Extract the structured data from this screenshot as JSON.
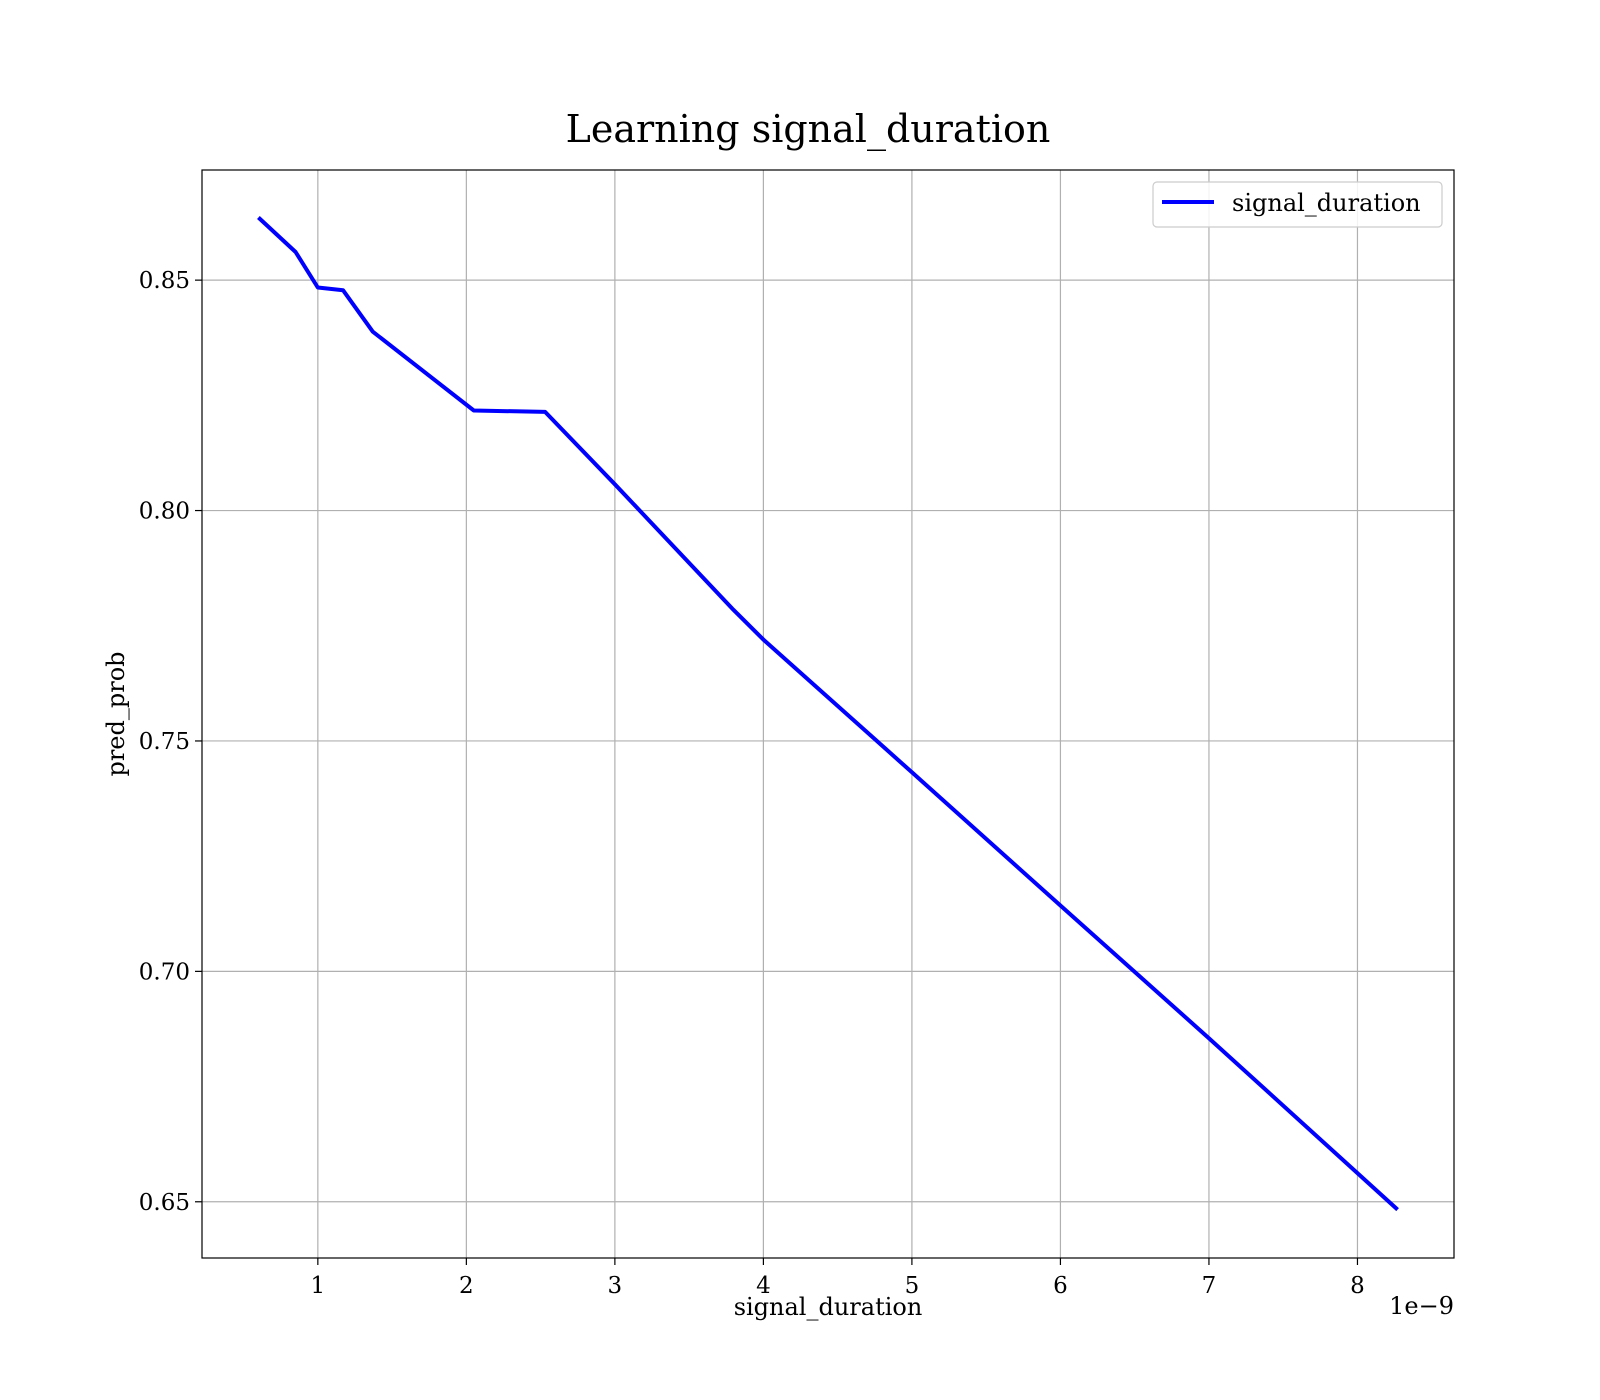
{
  "chart_data": {
    "type": "line",
    "title": "Learning signal_duration",
    "xlabel": "signal_duration",
    "ylabel": "pred_prob",
    "x_offset_label": "1e−9",
    "xlim": [
      0.22,
      8.65
    ],
    "ylim": [
      0.6378,
      0.8739
    ],
    "xticks": [
      1,
      2,
      3,
      4,
      5,
      6,
      7,
      8
    ],
    "xtick_labels": [
      "1",
      "2",
      "3",
      "4",
      "5",
      "6",
      "7",
      "8"
    ],
    "yticks": [
      0.65,
      0.7,
      0.75,
      0.8,
      0.85
    ],
    "ytick_labels": [
      "0.65",
      "0.70",
      "0.75",
      "0.80",
      "0.85"
    ],
    "grid": true,
    "legend_position": "top-right",
    "series": [
      {
        "name": "signal_duration",
        "color": "#0000ff",
        "x": [
          0.6,
          0.85,
          1.0,
          1.17,
          1.37,
          2.05,
          2.53,
          3.0,
          3.8,
          4.0,
          5.0,
          6.0,
          7.0,
          8.27
        ],
        "y": [
          0.8636,
          0.8561,
          0.8484,
          0.8478,
          0.8388,
          0.8217,
          0.8214,
          0.8057,
          0.7784,
          0.772,
          0.7432,
          0.7143,
          0.6855,
          0.6483
        ]
      }
    ]
  }
}
